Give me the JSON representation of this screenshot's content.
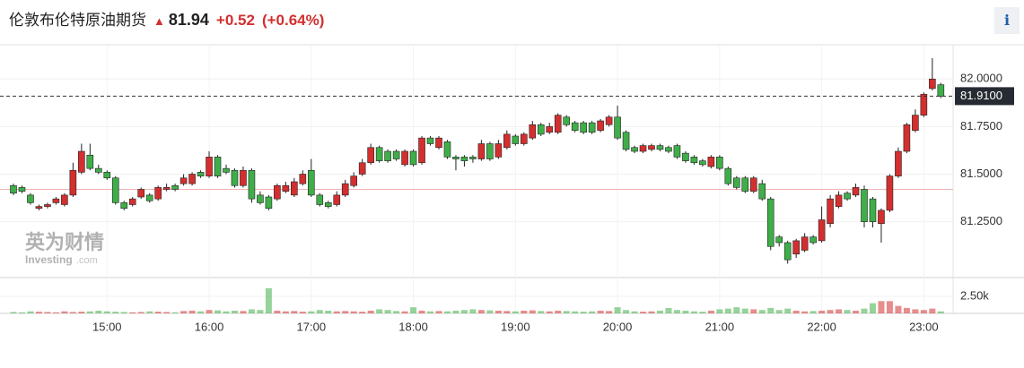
{
  "header": {
    "title": "伦敦布伦特原油期货",
    "price": "81.94",
    "change": "+0.52",
    "change_pct": "(+0.64%)",
    "info_button": "i"
  },
  "watermark": {
    "brand_cn": "英为财情",
    "brand_en": "Investing",
    "domain": ".com"
  },
  "chart_data": {
    "type": "candlestick",
    "categories": [
      null,
      null,
      null,
      null,
      null,
      null,
      null,
      null,
      null,
      null,
      null,
      "15:00",
      null,
      null,
      null,
      null,
      null,
      null,
      null,
      null,
      null,
      null,
      null,
      "16:00",
      null,
      null,
      null,
      null,
      null,
      null,
      null,
      null,
      null,
      null,
      null,
      "17:00",
      null,
      null,
      null,
      null,
      null,
      null,
      null,
      null,
      null,
      null,
      null,
      "18:00",
      null,
      null,
      null,
      null,
      null,
      null,
      null,
      null,
      null,
      null,
      null,
      "19:00",
      null,
      null,
      null,
      null,
      null,
      null,
      null,
      null,
      null,
      null,
      null,
      "20:00",
      null,
      null,
      null,
      null,
      null,
      null,
      null,
      null,
      null,
      null,
      null,
      "21:00",
      null,
      null,
      null,
      null,
      null,
      null,
      null,
      null,
      null,
      null,
      null,
      "22:00",
      null,
      null,
      null,
      null,
      null,
      null,
      null,
      null,
      null,
      null,
      null,
      "23:00",
      null,
      null
    ],
    "open": [
      81.44,
      81.43,
      81.39,
      81.32,
      81.33,
      81.35,
      81.34,
      81.39,
      81.51,
      81.6,
      81.53,
      81.51,
      81.48,
      81.35,
      81.34,
      81.38,
      81.39,
      81.37,
      81.42,
      81.44,
      81.45,
      81.45,
      81.51,
      81.49,
      81.59,
      81.53,
      81.52,
      81.44,
      81.52,
      81.39,
      81.38,
      81.37,
      81.41,
      81.39,
      81.45,
      81.52,
      81.39,
      81.35,
      81.34,
      81.39,
      81.44,
      81.5,
      81.56,
      81.64,
      81.62,
      81.62,
      81.55,
      81.62,
      81.56,
      81.69,
      81.64,
      81.67,
      81.59,
      81.59,
      81.59,
      81.58,
      81.66,
      81.59,
      81.64,
      81.7,
      81.66,
      81.69,
      81.76,
      81.72,
      81.72,
      81.8,
      81.77,
      81.77,
      81.77,
      81.73,
      81.76,
      81.8,
      81.72,
      81.64,
      81.62,
      81.63,
      81.65,
      81.64,
      81.65,
      81.61,
      81.59,
      81.57,
      81.54,
      81.59,
      81.53,
      81.48,
      81.48,
      81.41,
      81.45,
      81.37,
      81.17,
      81.14,
      81.08,
      81.1,
      81.17,
      81.15,
      81.24,
      81.33,
      81.4,
      81.39,
      81.42,
      81.37,
      81.24,
      81.31,
      81.49,
      81.62,
      81.73,
      81.81,
      81.95,
      81.97
    ],
    "high": [
      81.45,
      81.44,
      81.4,
      81.34,
      81.35,
      81.38,
      81.4,
      81.56,
      81.66,
      81.66,
      81.55,
      81.52,
      81.49,
      81.36,
      81.38,
      81.43,
      81.4,
      81.44,
      81.45,
      81.45,
      81.5,
      81.51,
      81.52,
      81.62,
      81.6,
      81.55,
      81.53,
      81.54,
      81.53,
      81.41,
      81.39,
      81.45,
      81.46,
      81.48,
      81.52,
      81.58,
      81.4,
      81.36,
      81.41,
      81.47,
      81.51,
      81.58,
      81.66,
      81.65,
      81.63,
      81.63,
      81.63,
      81.63,
      81.7,
      81.7,
      81.7,
      81.68,
      81.6,
      81.6,
      81.6,
      81.68,
      81.67,
      81.68,
      81.73,
      81.71,
      81.72,
      81.78,
      81.77,
      81.77,
      81.82,
      81.81,
      81.78,
      81.78,
      81.78,
      81.79,
      81.81,
      81.86,
      81.73,
      81.65,
      81.66,
      81.66,
      81.66,
      81.65,
      81.66,
      81.62,
      81.6,
      81.58,
      81.6,
      81.6,
      81.54,
      81.49,
      81.49,
      81.49,
      81.47,
      81.38,
      81.18,
      81.15,
      81.16,
      81.19,
      81.18,
      81.33,
      81.39,
      81.41,
      81.41,
      81.45,
      81.44,
      81.38,
      81.32,
      81.5,
      81.64,
      81.77,
      81.84,
      81.93,
      82.11,
      81.98
    ],
    "low": [
      81.39,
      81.4,
      81.34,
      81.31,
      81.32,
      81.34,
      81.33,
      81.38,
      81.5,
      81.52,
      81.5,
      81.47,
      81.34,
      81.31,
      81.33,
      81.37,
      81.35,
      81.36,
      81.41,
      81.41,
      81.44,
      81.44,
      81.48,
      81.48,
      81.48,
      81.5,
      81.43,
      81.43,
      81.35,
      81.34,
      81.31,
      81.36,
      81.4,
      81.38,
      81.44,
      81.38,
      81.33,
      81.32,
      81.33,
      81.38,
      81.43,
      81.49,
      81.55,
      81.56,
      81.56,
      81.57,
      81.54,
      81.54,
      81.55,
      81.65,
      81.63,
      81.58,
      81.52,
      81.54,
      81.56,
      81.57,
      81.57,
      81.58,
      81.63,
      81.65,
      81.65,
      81.68,
      81.7,
      81.71,
      81.71,
      81.75,
      81.72,
      81.71,
      81.71,
      81.72,
      81.75,
      81.68,
      81.62,
      81.61,
      81.61,
      81.62,
      81.62,
      81.61,
      81.58,
      81.56,
      81.55,
      81.54,
      81.53,
      81.52,
      81.44,
      81.42,
      81.4,
      81.4,
      81.36,
      81.1,
      81.12,
      81.03,
      81.06,
      81.09,
      81.13,
      81.14,
      81.22,
      81.32,
      81.36,
      81.38,
      81.22,
      81.22,
      81.14,
      81.3,
      81.48,
      81.61,
      81.72,
      81.8,
      81.94,
      81.9
    ],
    "close": [
      81.4,
      81.41,
      81.35,
      81.33,
      81.34,
      81.37,
      81.39,
      81.52,
      81.62,
      81.53,
      81.51,
      81.48,
      81.35,
      81.32,
      81.37,
      81.42,
      81.36,
      81.43,
      81.43,
      81.42,
      81.48,
      81.5,
      81.49,
      81.59,
      81.49,
      81.51,
      81.44,
      81.52,
      81.37,
      81.35,
      81.32,
      81.44,
      81.44,
      81.46,
      81.5,
      81.39,
      81.34,
      81.33,
      81.39,
      81.45,
      81.49,
      81.56,
      81.64,
      81.57,
      81.57,
      81.58,
      81.62,
      81.55,
      81.69,
      81.66,
      81.69,
      81.59,
      81.58,
      81.57,
      81.58,
      81.66,
      81.58,
      81.66,
      81.71,
      81.66,
      81.71,
      81.76,
      81.71,
      81.75,
      81.81,
      81.76,
      81.73,
      81.72,
      81.72,
      81.78,
      81.8,
      81.69,
      81.63,
      81.62,
      81.65,
      81.65,
      81.63,
      81.62,
      81.59,
      81.57,
      81.56,
      81.55,
      81.59,
      81.53,
      81.45,
      81.43,
      81.41,
      81.48,
      81.37,
      81.12,
      81.14,
      81.05,
      81.15,
      81.17,
      81.14,
      81.26,
      81.37,
      81.39,
      81.37,
      81.43,
      81.25,
      81.25,
      81.31,
      81.49,
      81.62,
      81.76,
      81.81,
      81.92,
      82.0,
      81.91
    ],
    "volume": [
      200,
      150,
      300,
      250,
      200,
      150,
      300,
      200,
      250,
      300,
      400,
      300,
      250,
      200,
      150,
      200,
      300,
      250,
      200,
      150,
      350,
      400,
      300,
      500,
      450,
      300,
      400,
      350,
      600,
      500,
      3700,
      400,
      300,
      350,
      250,
      300,
      500,
      400,
      300,
      350,
      300,
      250,
      400,
      600,
      500,
      350,
      300,
      900,
      400,
      300,
      350,
      300,
      400,
      500,
      600,
      500,
      450,
      400,
      350,
      300,
      400,
      450,
      350,
      300,
      400,
      350,
      300,
      250,
      300,
      400,
      350,
      900,
      500,
      300,
      250,
      300,
      400,
      800,
      500,
      400,
      300,
      250,
      400,
      600,
      700,
      900,
      700,
      600,
      500,
      800,
      500,
      700,
      400,
      300,
      350,
      400,
      500,
      600,
      500,
      400,
      700,
      1500,
      1800,
      1800,
      1100,
      800,
      600,
      500,
      700,
      300
    ],
    "up_color": "#d32f2f",
    "down_color": "#3fae49",
    "ylim": [
      80.98,
      82.18
    ],
    "yticks": [
      {
        "value": 82,
        "label": "82.0000"
      },
      {
        "value": 81.75,
        "label": "81.7500"
      },
      {
        "value": 81.5,
        "label": "81.5000"
      },
      {
        "value": 81.25,
        "label": "81.2500"
      }
    ],
    "last_price": {
      "value": 81.91,
      "label": "81.9100"
    },
    "previous_close": 81.42,
    "y2lim": [
      0,
      5000
    ],
    "y2ticks": [
      {
        "value": 2500,
        "label": "2.50k"
      }
    ],
    "grid": true
  }
}
